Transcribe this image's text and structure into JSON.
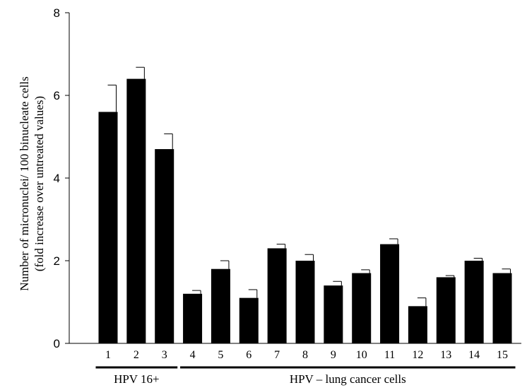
{
  "chart_data": {
    "type": "bar",
    "title": "",
    "xlabel": "",
    "ylabel_lines": [
      "Number of micronuclei/ 100 binucleate cells",
      "(fold increase over untreated values)"
    ],
    "ylim": [
      0,
      8
    ],
    "yticks": [
      "0",
      "2",
      "4",
      "6",
      "8"
    ],
    "grid": false,
    "categories": [
      "1",
      "2",
      "3",
      "4",
      "5",
      "6",
      "7",
      "8",
      "9",
      "10",
      "11",
      "12",
      "13",
      "14",
      "15"
    ],
    "values": [
      5.6,
      6.4,
      4.7,
      1.2,
      1.8,
      1.1,
      2.3,
      2.0,
      1.4,
      1.7,
      2.4,
      0.9,
      1.6,
      2.0,
      1.7
    ],
    "errors": [
      0.65,
      0.28,
      0.37,
      0.08,
      0.2,
      0.2,
      0.1,
      0.15,
      0.1,
      0.08,
      0.13,
      0.2,
      0.04,
      0.06,
      0.1
    ],
    "bar_color": "#000000",
    "groups": [
      {
        "label": "HPV 16+",
        "categories": [
          "1",
          "2",
          "3"
        ]
      },
      {
        "label": "HPV – lung cancer cells",
        "categories": [
          "4",
          "5",
          "6",
          "7",
          "8",
          "9",
          "10",
          "11",
          "12",
          "13",
          "14",
          "15"
        ]
      }
    ]
  }
}
